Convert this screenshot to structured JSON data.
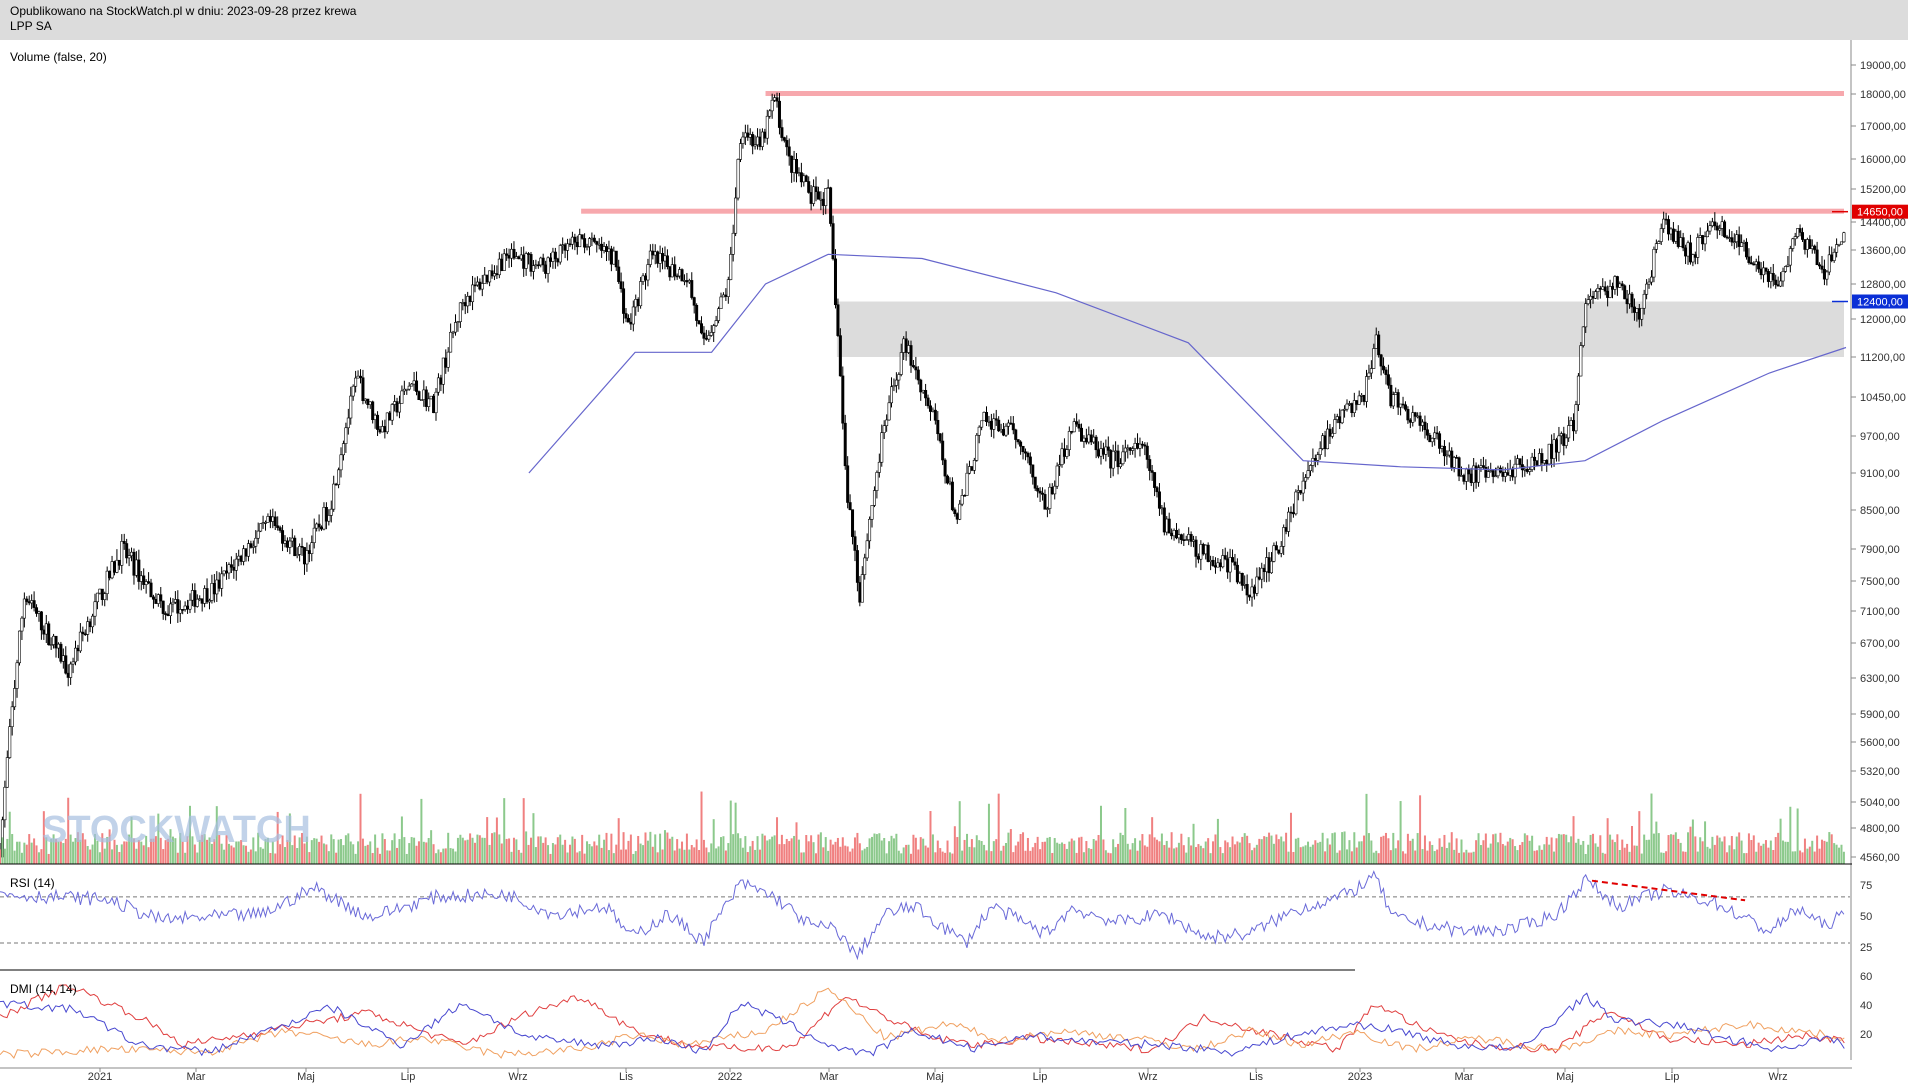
{
  "header": {
    "published": "Opublikowano na StockWatch.pl w dniu: 2023-09-28 przez krewa",
    "symbol": "LPP SA"
  },
  "watermark": "STOCKWATCH",
  "colors": {
    "up_volume": "#8cc98c",
    "down_volume": "#f08080",
    "ma": "#6666cc",
    "resistance": "#f7a8ad",
    "zone": "#dcdcdc",
    "price_tag_red": "#e00000",
    "price_tag_blue": "#0a2fd6",
    "dmi_red": "#e04040",
    "dmi_orange": "#f0a060",
    "dmi_blue": "#4848d0"
  },
  "chart_data": [
    {
      "type": "candlestick",
      "panel": "price",
      "volume_label": "Volume (false, 20)",
      "y_ticks": [
        "19000,00",
        "18000,00",
        "17000,00",
        "16000,00",
        "15200,00",
        "14400,00",
        "13600,00",
        "12800,00",
        "12000,00",
        "11200,00",
        "10450,00",
        "9700,00",
        "9100,00",
        "8500,00",
        "7900,00",
        "7500,00",
        "7100,00",
        "6700,00",
        "6300,00",
        "5900,00",
        "5600,00",
        "5320,00",
        "5040,00",
        "4800,00",
        "4560,00"
      ],
      "x_ticks": [
        "2021",
        "Mar",
        "Maj",
        "Lip",
        "Wrz",
        "Lis",
        "2022",
        "Mar",
        "Maj",
        "Lip",
        "Wrz",
        "Lis",
        "2023",
        "Mar",
        "Maj",
        "Lip",
        "Wrz"
      ],
      "close_path": [
        [
          "2020-11-01",
          4600
        ],
        [
          "2020-11-15",
          7300
        ],
        [
          "2020-12-10",
          6400
        ],
        [
          "2021-01-10",
          7900
        ],
        [
          "2021-02-05",
          7100
        ],
        [
          "2021-03-05",
          7400
        ],
        [
          "2021-04-05",
          8300
        ],
        [
          "2021-04-25",
          7800
        ],
        [
          "2021-05-10",
          8600
        ],
        [
          "2021-05-25",
          10800
        ],
        [
          "2021-06-08",
          9800
        ],
        [
          "2021-06-25",
          10700
        ],
        [
          "2021-07-08",
          10300
        ],
        [
          "2021-07-25",
          12400
        ],
        [
          "2021-08-20",
          13500
        ],
        [
          "2021-09-10",
          13200
        ],
        [
          "2021-10-01",
          13900
        ],
        [
          "2021-10-20",
          13400
        ],
        [
          "2021-10-28",
          11800
        ],
        [
          "2021-11-10",
          13400
        ],
        [
          "2021-12-01",
          13000
        ],
        [
          "2021-12-10",
          11400
        ],
        [
          "2021-12-25",
          12800
        ],
        [
          "2022-01-01",
          17000
        ],
        [
          "2022-01-12",
          16300
        ],
        [
          "2022-01-20",
          17900
        ],
        [
          "2022-01-28",
          16000
        ],
        [
          "2022-02-10",
          15000
        ],
        [
          "2022-02-20",
          15000
        ],
        [
          "2022-02-25",
          12000
        ],
        [
          "2022-03-02",
          9000
        ],
        [
          "2022-03-10",
          7300
        ],
        [
          "2022-03-25",
          10000
        ],
        [
          "2022-04-05",
          11500
        ],
        [
          "2022-04-20",
          10200
        ],
        [
          "2022-05-05",
          8300
        ],
        [
          "2022-05-20",
          10000
        ],
        [
          "2022-06-10",
          9700
        ],
        [
          "2022-06-25",
          8500
        ],
        [
          "2022-07-10",
          9900
        ],
        [
          "2022-08-01",
          9300
        ],
        [
          "2022-08-20",
          9500
        ],
        [
          "2022-09-01",
          8300
        ],
        [
          "2022-09-20",
          7900
        ],
        [
          "2022-10-10",
          7700
        ],
        [
          "2022-10-20",
          7300
        ],
        [
          "2022-11-05",
          7900
        ],
        [
          "2022-11-20",
          9000
        ],
        [
          "2022-12-10",
          10000
        ],
        [
          "2022-12-25",
          10500
        ],
        [
          "2023-01-01",
          11600
        ],
        [
          "2023-01-08",
          10500
        ],
        [
          "2023-01-30",
          9800
        ],
        [
          "2023-02-20",
          9100
        ],
        [
          "2023-03-10",
          9050
        ],
        [
          "2023-04-10",
          9400
        ],
        [
          "2023-04-25",
          9900
        ],
        [
          "2023-05-01",
          12400
        ],
        [
          "2023-05-20",
          12800
        ],
        [
          "2023-06-01",
          12000
        ],
        [
          "2023-06-15",
          14300
        ],
        [
          "2023-07-01",
          13500
        ],
        [
          "2023-07-15",
          14400
        ],
        [
          "2023-08-01",
          13600
        ],
        [
          "2023-08-20",
          12800
        ],
        [
          "2023-09-01",
          14100
        ],
        [
          "2023-09-15",
          13000
        ],
        [
          "2023-09-25",
          13900
        ]
      ],
      "ma_200": [
        [
          "2021-09-01",
          9100
        ],
        [
          "2021-11-01",
          11300
        ],
        [
          "2021-12-15",
          11300
        ],
        [
          "2022-01-15",
          12800
        ],
        [
          "2022-02-20",
          13500
        ],
        [
          "2022-04-15",
          13400
        ],
        [
          "2022-07-01",
          12600
        ],
        [
          "2022-09-15",
          11500
        ],
        [
          "2022-11-20",
          9300
        ],
        [
          "2023-01-15",
          9200
        ],
        [
          "2023-03-15",
          9150
        ],
        [
          "2023-05-01",
          9300
        ],
        [
          "2023-06-15",
          10000
        ],
        [
          "2023-08-15",
          10900
        ],
        [
          "2023-09-28",
          11400
        ]
      ],
      "resistance_levels": [
        {
          "from": "2022-01-15",
          "to": "2023-09-28",
          "value": 18000
        },
        {
          "from": "2021-10-01",
          "to": "2023-09-28",
          "value": 14650
        }
      ],
      "support_zone": {
        "from": "2022-02-25",
        "to": "2023-09-28",
        "low": 11200,
        "high": 12400
      },
      "price_tags": [
        {
          "value": 14650,
          "label": "14650,00",
          "color": "red"
        },
        {
          "value": 12400,
          "label": "12400,00",
          "color": "blue"
        }
      ]
    },
    {
      "type": "line",
      "panel": "rsi",
      "title": "RSI (14)",
      "y_ticks": [
        "75",
        "50",
        "25"
      ],
      "levels": [
        70,
        30
      ],
      "series": [
        {
          "values": [
            [
              "2020-11-01",
              72
            ],
            [
              "2021-01-01",
              68
            ],
            [
              "2021-02-01",
              50
            ],
            [
              "2021-04-01",
              55
            ],
            [
              "2021-05-01",
              78
            ],
            [
              "2021-06-01",
              52
            ],
            [
              "2021-07-10",
              70
            ],
            [
              "2021-08-20",
              72
            ],
            [
              "2021-09-15",
              55
            ],
            [
              "2021-10-15",
              62
            ],
            [
              "2021-10-30",
              35
            ],
            [
              "2021-11-20",
              55
            ],
            [
              "2021-12-10",
              32
            ],
            [
              "2022-01-01",
              82
            ],
            [
              "2022-01-20",
              70
            ],
            [
              "2022-02-10",
              45
            ],
            [
              "2022-02-25",
              42
            ],
            [
              "2022-03-08",
              18
            ],
            [
              "2022-03-25",
              55
            ],
            [
              "2022-04-10",
              62
            ],
            [
              "2022-05-10",
              30
            ],
            [
              "2022-05-25",
              62
            ],
            [
              "2022-06-25",
              38
            ],
            [
              "2022-07-10",
              60
            ],
            [
              "2022-08-05",
              48
            ],
            [
              "2022-09-01",
              55
            ],
            [
              "2022-09-25",
              35
            ],
            [
              "2022-10-20",
              38
            ],
            [
              "2022-11-15",
              58
            ],
            [
              "2022-12-15",
              72
            ],
            [
              "2023-01-01",
              88
            ],
            [
              "2023-01-10",
              52
            ],
            [
              "2023-02-20",
              40
            ],
            [
              "2023-03-20",
              42
            ],
            [
              "2023-04-15",
              55
            ],
            [
              "2023-05-01",
              85
            ],
            [
              "2023-05-20",
              62
            ],
            [
              "2023-06-15",
              75
            ],
            [
              "2023-07-15",
              65
            ],
            [
              "2023-08-15",
              40
            ],
            [
              "2023-09-01",
              60
            ],
            [
              "2023-09-15",
              45
            ],
            [
              "2023-09-28",
              55
            ]
          ]
        }
      ]
    },
    {
      "type": "line",
      "panel": "dmi",
      "title": "DMI (14, 14)",
      "y_ticks": [
        "60",
        "40",
        "20"
      ],
      "series": [
        {
          "color": "red",
          "values": [
            [
              "2020-11-01",
              35
            ],
            [
              "2020-12-10",
              58
            ],
            [
              "2021-01-20",
              35
            ],
            [
              "2021-02-15",
              15
            ],
            [
              "2021-03-20",
              22
            ],
            [
              "2021-04-25",
              30
            ],
            [
              "2021-06-01",
              38
            ],
            [
              "2021-07-01",
              25
            ],
            [
              "2021-07-25",
              15
            ],
            [
              "2021-09-01",
              38
            ],
            [
              "2021-10-01",
              50
            ],
            [
              "2021-11-01",
              25
            ],
            [
              "2021-12-01",
              15
            ],
            [
              "2022-01-01",
              12
            ],
            [
              "2022-02-01",
              15
            ],
            [
              "2022-03-01",
              50
            ],
            [
              "2022-03-25",
              35
            ],
            [
              "2022-04-20",
              20
            ],
            [
              "2022-05-20",
              15
            ],
            [
              "2022-06-15",
              20
            ],
            [
              "2022-07-25",
              15
            ],
            [
              "2022-08-25",
              12
            ],
            [
              "2022-09-25",
              35
            ],
            [
              "2022-10-25",
              25
            ],
            [
              "2022-12-10",
              12
            ],
            [
              "2023-01-01",
              45
            ],
            [
              "2023-01-30",
              25
            ],
            [
              "2023-03-01",
              15
            ],
            [
              "2023-04-15",
              12
            ],
            [
              "2023-05-15",
              40
            ],
            [
              "2023-06-15",
              20
            ],
            [
              "2023-08-01",
              15
            ],
            [
              "2023-09-01",
              22
            ],
            [
              "2023-09-28",
              18
            ]
          ]
        },
        {
          "color": "orange",
          "values": [
            [
              "2020-11-01",
              8
            ],
            [
              "2021-01-01",
              12
            ],
            [
              "2021-03-01",
              10
            ],
            [
              "2021-04-15",
              25
            ],
            [
              "2021-06-01",
              15
            ],
            [
              "2021-07-01",
              20
            ],
            [
              "2021-08-15",
              8
            ],
            [
              "2021-10-01",
              12
            ],
            [
              "2021-11-01",
              22
            ],
            [
              "2021-12-01",
              15
            ],
            [
              "2022-01-15",
              25
            ],
            [
              "2022-02-20",
              55
            ],
            [
              "2022-03-25",
              20
            ],
            [
              "2022-05-01",
              30
            ],
            [
              "2022-06-01",
              18
            ],
            [
              "2022-07-01",
              25
            ],
            [
              "2022-08-15",
              20
            ],
            [
              "2022-09-20",
              12
            ],
            [
              "2022-10-20",
              25
            ],
            [
              "2022-11-20",
              15
            ],
            [
              "2022-12-20",
              25
            ],
            [
              "2023-01-20",
              12
            ],
            [
              "2023-03-01",
              20
            ],
            [
              "2023-04-15",
              12
            ],
            [
              "2023-05-20",
              25
            ],
            [
              "2023-06-20",
              22
            ],
            [
              "2023-08-01",
              30
            ],
            [
              "2023-09-01",
              25
            ],
            [
              "2023-09-28",
              20
            ]
          ]
        },
        {
          "color": "blue",
          "values": [
            [
              "2020-11-01",
              45
            ],
            [
              "2020-12-15",
              40
            ],
            [
              "2021-01-20",
              15
            ],
            [
              "2021-03-01",
              10
            ],
            [
              "2021-04-15",
              30
            ],
            [
              "2021-05-10",
              42
            ],
            [
              "2021-06-20",
              15
            ],
            [
              "2021-07-25",
              45
            ],
            [
              "2021-09-01",
              20
            ],
            [
              "2021-10-15",
              15
            ],
            [
              "2021-11-15",
              20
            ],
            [
              "2021-12-10",
              10
            ],
            [
              "2022-01-01",
              45
            ],
            [
              "2022-01-25",
              32
            ],
            [
              "2022-02-20",
              15
            ],
            [
              "2022-03-15",
              8
            ],
            [
              "2022-04-10",
              25
            ],
            [
              "2022-05-15",
              12
            ],
            [
              "2022-06-15",
              22
            ],
            [
              "2022-07-15",
              18
            ],
            [
              "2022-09-01",
              15
            ],
            [
              "2022-10-10",
              10
            ],
            [
              "2022-11-15",
              22
            ],
            [
              "2022-12-20",
              30
            ],
            [
              "2023-01-15",
              25
            ],
            [
              "2023-02-15",
              15
            ],
            [
              "2023-03-25",
              12
            ],
            [
              "2023-05-01",
              50
            ],
            [
              "2023-05-20",
              32
            ],
            [
              "2023-06-20",
              30
            ],
            [
              "2023-07-20",
              20
            ],
            [
              "2023-08-20",
              12
            ],
            [
              "2023-09-15",
              20
            ],
            [
              "2023-09-28",
              15
            ]
          ]
        }
      ]
    }
  ]
}
